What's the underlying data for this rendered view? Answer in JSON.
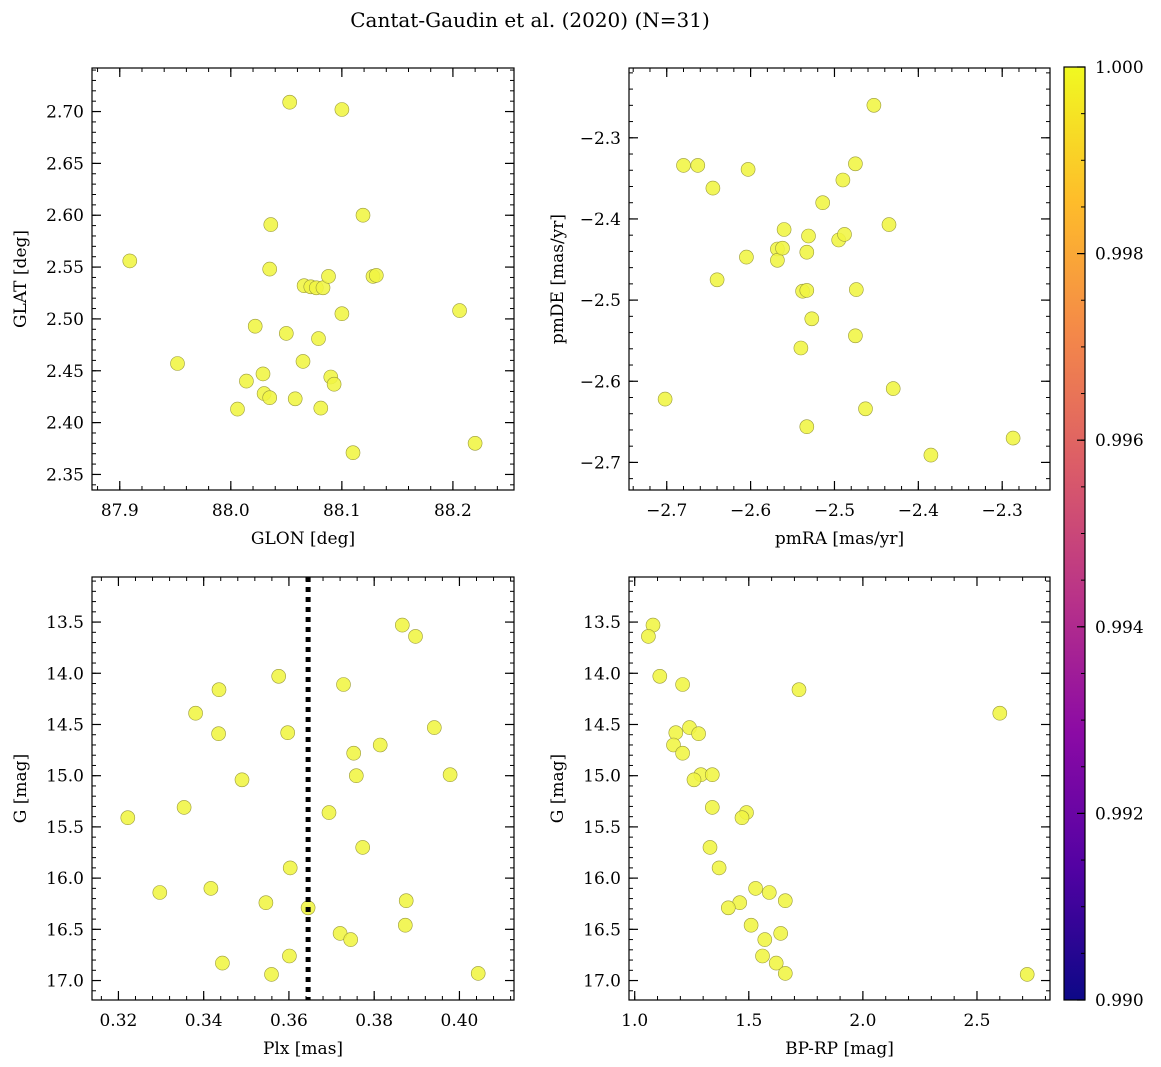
{
  "figure": {
    "title": "Cantat-Gaudin et al. (2020) (N=31)",
    "marker_color": "#f0f542",
    "marker_edge": "#9a9a3c"
  },
  "colorbar": {
    "min": 0.99,
    "max": 1.0,
    "ticks": [
      0.99,
      0.992,
      0.994,
      0.996,
      0.998,
      1.0
    ],
    "tick_labels": [
      "0.990",
      "0.992",
      "0.994",
      "0.996",
      "0.998",
      "1.000"
    ],
    "colormap": "plasma",
    "stops": [
      "#0d0887",
      "#5302a3",
      "#8b0aa5",
      "#b83289",
      "#db5c68",
      "#f48849",
      "#febd2a",
      "#f0f921"
    ]
  },
  "chart_data": [
    {
      "type": "scatter",
      "xlabel": "GLON [deg]",
      "ylabel": "GLAT [deg]",
      "xlim": [
        87.875,
        88.255
      ],
      "ylim": [
        2.335,
        2.742
      ],
      "xticks": [
        87.9,
        88.0,
        88.1,
        88.2
      ],
      "xtick_labels": [
        "87.9",
        "88.0",
        "88.1",
        "88.2"
      ],
      "yticks": [
        2.4,
        2.45,
        2.5,
        2.55,
        2.6,
        2.65,
        2.7
      ],
      "ytick_labels": [
        "2.40",
        "2.45",
        "2.50",
        "2.55",
        "2.60",
        "2.65",
        "2.70"
      ],
      "yticks_extra": [
        2.35
      ],
      "ytick_labels_extra": [
        "2.35"
      ],
      "points": [
        [
          87.909,
          2.556
        ],
        [
          87.952,
          2.457
        ],
        [
          88.006,
          2.413
        ],
        [
          88.014,
          2.44
        ],
        [
          88.022,
          2.493
        ],
        [
          88.029,
          2.447
        ],
        [
          88.03,
          2.428
        ],
        [
          88.035,
          2.424
        ],
        [
          88.035,
          2.548
        ],
        [
          88.036,
          2.591
        ],
        [
          88.053,
          2.709
        ],
        [
          88.05,
          2.486
        ],
        [
          88.058,
          2.423
        ],
        [
          88.065,
          2.459
        ],
        [
          88.066,
          2.532
        ],
        [
          88.072,
          2.531
        ],
        [
          88.077,
          2.53
        ],
        [
          88.079,
          2.481
        ],
        [
          88.081,
          2.414
        ],
        [
          88.083,
          2.53
        ],
        [
          88.088,
          2.541
        ],
        [
          88.09,
          2.444
        ],
        [
          88.093,
          2.437
        ],
        [
          88.1,
          2.505
        ],
        [
          88.1,
          2.702
        ],
        [
          88.11,
          2.371
        ],
        [
          88.119,
          2.6
        ],
        [
          88.128,
          2.541
        ],
        [
          88.131,
          2.542
        ],
        [
          88.206,
          2.508
        ],
        [
          88.22,
          2.38
        ]
      ]
    },
    {
      "type": "scatter",
      "xlabel": "pmRA [mas/yr]",
      "ylabel": "pmDE [mas/yr]",
      "xlim": [
        -2.745,
        -2.243
      ],
      "ylim": [
        -2.734,
        -2.214
      ],
      "xticks": [
        -2.7,
        -2.6,
        -2.5,
        -2.4,
        -2.3
      ],
      "xtick_labels": [
        "−2.7",
        "−2.6",
        "−2.5",
        "−2.4",
        "−2.3"
      ],
      "yticks": [
        -2.7,
        -2.6,
        -2.5,
        -2.4,
        -2.3
      ],
      "ytick_labels": [
        "−2.7",
        "−2.6",
        "−2.5",
        "−2.4",
        "−2.3"
      ],
      "points": [
        [
          -2.702,
          -2.622
        ],
        [
          -2.68,
          -2.334
        ],
        [
          -2.663,
          -2.334
        ],
        [
          -2.645,
          -2.362
        ],
        [
          -2.64,
          -2.475
        ],
        [
          -2.605,
          -2.447
        ],
        [
          -2.603,
          -2.339
        ],
        [
          -2.568,
          -2.437
        ],
        [
          -2.568,
          -2.451
        ],
        [
          -2.562,
          -2.436
        ],
        [
          -2.56,
          -2.413
        ],
        [
          -2.54,
          -2.559
        ],
        [
          -2.538,
          -2.489
        ],
        [
          -2.533,
          -2.488
        ],
        [
          -2.533,
          -2.441
        ],
        [
          -2.533,
          -2.656
        ],
        [
          -2.531,
          -2.421
        ],
        [
          -2.527,
          -2.523
        ],
        [
          -2.514,
          -2.38
        ],
        [
          -2.495,
          -2.426
        ],
        [
          -2.49,
          -2.352
        ],
        [
          -2.488,
          -2.419
        ],
        [
          -2.475,
          -2.332
        ],
        [
          -2.475,
          -2.544
        ],
        [
          -2.474,
          -2.487
        ],
        [
          -2.463,
          -2.634
        ],
        [
          -2.453,
          -2.26
        ],
        [
          -2.435,
          -2.407
        ],
        [
          -2.43,
          -2.609
        ],
        [
          -2.385,
          -2.691
        ],
        [
          -2.287,
          -2.67
        ]
      ]
    },
    {
      "type": "scatter",
      "xlabel": "Plx [mas]",
      "ylabel": "G [mag]",
      "invert_y": true,
      "xlim": [
        0.3138,
        0.4128
      ],
      "ylim": [
        17.19,
        13.06
      ],
      "xticks": [
        0.32,
        0.34,
        0.36,
        0.38,
        0.4
      ],
      "xtick_labels": [
        "0.32",
        "0.34",
        "0.36",
        "0.38",
        "0.40"
      ],
      "yticks": [
        13.5,
        14.0,
        14.5,
        15.0,
        15.5,
        16.0,
        16.5,
        17.0
      ],
      "ytick_labels": [
        "13.5",
        "14.0",
        "14.5",
        "15.0",
        "15.5",
        "16.0",
        "16.5",
        "17.0"
      ],
      "vline": 0.3645,
      "points": [
        [
          0.3222,
          15.41
        ],
        [
          0.3297,
          16.14
        ],
        [
          0.3354,
          15.31
        ],
        [
          0.3381,
          14.39
        ],
        [
          0.3417,
          16.1
        ],
        [
          0.3436,
          14.16
        ],
        [
          0.3435,
          14.59
        ],
        [
          0.3444,
          16.83
        ],
        [
          0.349,
          15.04
        ],
        [
          0.3546,
          16.24
        ],
        [
          0.3559,
          16.94
        ],
        [
          0.3576,
          14.03
        ],
        [
          0.3597,
          14.58
        ],
        [
          0.3601,
          16.76
        ],
        [
          0.3603,
          15.9
        ],
        [
          0.3645,
          16.29
        ],
        [
          0.3694,
          15.36
        ],
        [
          0.372,
          16.54
        ],
        [
          0.3728,
          14.11
        ],
        [
          0.3745,
          16.6
        ],
        [
          0.3752,
          14.78
        ],
        [
          0.3758,
          15.0
        ],
        [
          0.3773,
          15.7
        ],
        [
          0.3814,
          14.7
        ],
        [
          0.3866,
          13.53
        ],
        [
          0.3873,
          16.46
        ],
        [
          0.3875,
          16.22
        ],
        [
          0.3897,
          13.64
        ],
        [
          0.3941,
          14.53
        ],
        [
          0.3978,
          14.99
        ],
        [
          0.4044,
          16.93
        ]
      ]
    },
    {
      "type": "scatter",
      "xlabel": "BP-RP [mag]",
      "ylabel": "G [mag]",
      "invert_y": true,
      "xlim": [
        0.975,
        2.82
      ],
      "ylim": [
        17.19,
        13.06
      ],
      "xticks": [
        1.0,
        1.5,
        2.0,
        2.5
      ],
      "xtick_labels": [
        "1.0",
        "1.5",
        "2.0",
        "2.5"
      ],
      "yticks": [
        13.5,
        14.0,
        14.5,
        15.0,
        15.5,
        16.0,
        16.5,
        17.0
      ],
      "ytick_labels": [
        "13.5",
        "14.0",
        "14.5",
        "15.0",
        "15.5",
        "16.0",
        "16.5",
        "17.0"
      ],
      "points": [
        [
          1.08,
          13.53
        ],
        [
          1.06,
          13.64
        ],
        [
          1.11,
          14.03
        ],
        [
          1.21,
          14.11
        ],
        [
          1.18,
          14.58
        ],
        [
          1.24,
          14.53
        ],
        [
          1.28,
          14.59
        ],
        [
          1.17,
          14.7
        ],
        [
          1.21,
          14.78
        ],
        [
          1.29,
          14.99
        ],
        [
          1.26,
          15.04
        ],
        [
          1.34,
          14.99
        ],
        [
          1.34,
          15.31
        ],
        [
          1.49,
          15.36
        ],
        [
          1.47,
          15.41
        ],
        [
          1.33,
          15.7
        ],
        [
          1.37,
          15.9
        ],
        [
          1.53,
          16.1
        ],
        [
          1.59,
          16.14
        ],
        [
          1.66,
          16.22
        ],
        [
          1.46,
          16.24
        ],
        [
          1.41,
          16.29
        ],
        [
          1.51,
          16.46
        ],
        [
          1.64,
          16.54
        ],
        [
          1.57,
          16.6
        ],
        [
          1.56,
          16.76
        ],
        [
          1.62,
          16.83
        ],
        [
          1.66,
          16.93
        ],
        [
          1.72,
          14.16
        ],
        [
          2.6,
          14.39
        ],
        [
          2.72,
          16.94
        ]
      ]
    }
  ]
}
